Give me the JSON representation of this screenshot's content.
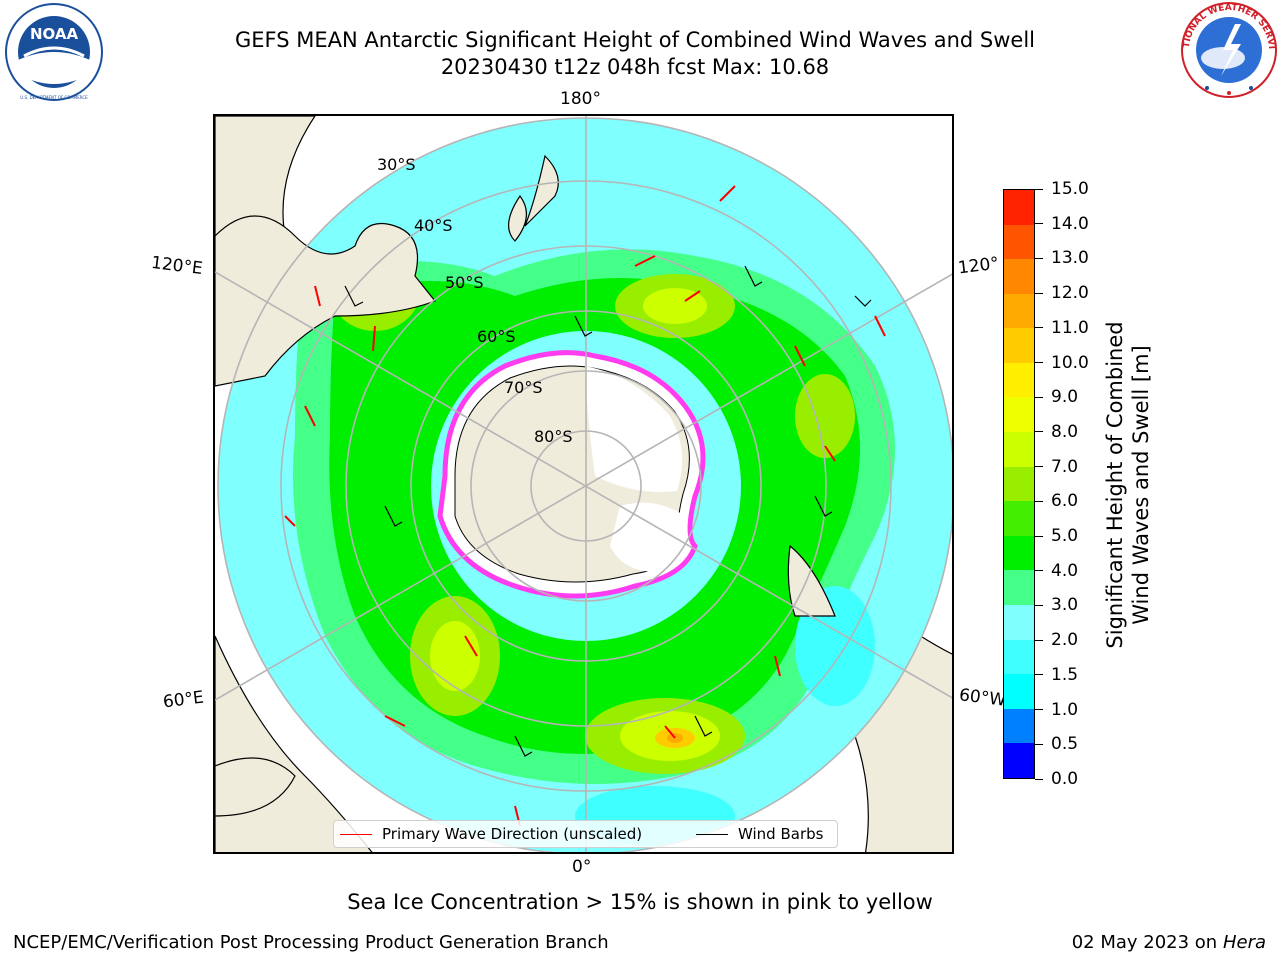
{
  "title": {
    "line1": "GEFS MEAN Antarctic Significant Height of Combined Wind Waves and Swell",
    "line2": "20230430 t12z 048h fcst   Max: 10.68"
  },
  "logos": {
    "noaa": {
      "text": "NOAA",
      "ring_text": "NATIONAL OCEANIC AND ATMOSPHERIC ADMINISTRATION · U.S. DEPARTMENT OF COMMERCE",
      "color": "#1a4f9c"
    },
    "nws": {
      "ring_text": "NATIONAL WEATHER SERVICE",
      "color": "#d0202a"
    }
  },
  "map": {
    "projection": "south-polar-stereographic",
    "longitude_labels": {
      "top": "180°",
      "bottom": "0°",
      "left_upper": "120°E",
      "left_lower": "60°E",
      "right_upper": "120°",
      "right_lower": "60°W"
    },
    "latitude_labels": [
      "30°S",
      "40°S",
      "50°S",
      "60°S",
      "70°S",
      "80°S"
    ],
    "colors": {
      "land": "#efecdc",
      "ice": "#ffffff",
      "ice_edge": "#ff3cf0",
      "ocean_outside": "#ffffff",
      "grid": "#b5b5b5",
      "wave_arrow": "#ff0000",
      "barb": "#000000"
    },
    "wave_maxima": [
      {
        "name": "south-atlantic-max",
        "value": 10.68
      }
    ]
  },
  "legend": {
    "primary_wave_label": "Primary Wave Direction (unscaled)",
    "primary_wave_color": "#ff0000",
    "wind_barbs_label": "Wind Barbs",
    "wind_barbs_color": "#000000"
  },
  "colorbar": {
    "label_line1": "Significant Height of Combined",
    "label_line2": "Wind Waves and Swell [m]",
    "ticks": [
      "0.0",
      "0.5",
      "1.0",
      "1.5",
      "2.0",
      "3.0",
      "4.0",
      "5.0",
      "6.0",
      "7.0",
      "8.0",
      "9.0",
      "10.0",
      "11.0",
      "12.0",
      "13.0",
      "14.0",
      "15.0"
    ],
    "colors": [
      "#0000ff",
      "#0080ff",
      "#00ffff",
      "#40ffff",
      "#80ffff",
      "#44ff88",
      "#00ee00",
      "#44ee00",
      "#99ee00",
      "#ccff00",
      "#eeff00",
      "#ffee00",
      "#ffcc00",
      "#ffaa00",
      "#ff8800",
      "#ff5500",
      "#ff2200"
    ]
  },
  "footer": {
    "note": "Sea Ice Concentration > 15% is shown in pink to yellow",
    "credit": "NCEP/EMC/Verification Post Processing Product Generation Branch",
    "date": "02 May 2023 on",
    "host": "Hera"
  }
}
